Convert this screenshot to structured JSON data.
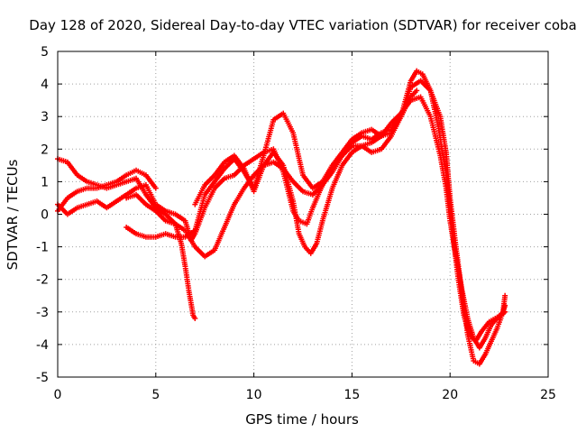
{
  "chart_data": {
    "type": "scatter",
    "title": "Day 128 of 2020, Sidereal Day-to-day VTEC variation (SDTVAR) for receiver coba",
    "xlabel": "GPS time / hours",
    "ylabel": "SDTVAR / TECUs",
    "xlim": [
      0,
      25
    ],
    "ylim": [
      -5,
      5
    ],
    "x_ticks": [
      "0",
      "5",
      "10",
      "15",
      "20",
      "25"
    ],
    "y_ticks": [
      "5",
      "4",
      "3",
      "2",
      "1",
      "0",
      "-1",
      "-2",
      "-3",
      "-4",
      "-5"
    ],
    "grid": true,
    "legend": "none",
    "marker": "plus",
    "color": "#ff0000",
    "series": [
      {
        "x": [
          0.0,
          0.5,
          1.0,
          1.5,
          2.0,
          2.5,
          3.0,
          3.5,
          4.0,
          4.5,
          5.0,
          5.5,
          6.0,
          6.3,
          6.5,
          6.7,
          6.9,
          7.0
        ],
        "y": [
          1.7,
          1.6,
          1.2,
          1.0,
          0.9,
          0.8,
          0.9,
          1.0,
          1.1,
          0.6,
          0.2,
          0.0,
          -0.3,
          -0.9,
          -1.6,
          -2.4,
          -3.1,
          -3.2
        ]
      },
      {
        "x": [
          0.0,
          0.5,
          1.0,
          1.5,
          2.0,
          2.5,
          3.0,
          3.5,
          4.0,
          4.5,
          5.0
        ],
        "y": [
          0.1,
          0.5,
          0.7,
          0.8,
          0.8,
          0.9,
          1.0,
          1.2,
          1.35,
          1.2,
          0.8
        ]
      },
      {
        "x": [
          0.0,
          0.5,
          1.0,
          1.5,
          2.0,
          2.5,
          3.0,
          3.5,
          4.0,
          4.5,
          5.0,
          5.5,
          6.0,
          6.5,
          6.8,
          7.0,
          7.5,
          8.0,
          8.5,
          9.0,
          9.5,
          10.0,
          10.5,
          11.0,
          11.5,
          12.0,
          12.3,
          12.7,
          13.0,
          13.5,
          14.0,
          14.5,
          15.0,
          15.5,
          16.0,
          16.5,
          17.0,
          17.5,
          18.0,
          18.5,
          19.0,
          19.5,
          19.8,
          20.0,
          20.3,
          20.6,
          20.9,
          21.2,
          21.5,
          21.8,
          22.1,
          22.4,
          22.7,
          22.8
        ],
        "y": [
          0.3,
          0.0,
          0.2,
          0.3,
          0.4,
          0.2,
          0.4,
          0.6,
          0.8,
          0.9,
          0.3,
          0.1,
          0.0,
          -0.2,
          -0.8,
          -0.6,
          0.2,
          0.8,
          1.1,
          1.2,
          1.5,
          1.7,
          1.9,
          2.0,
          1.3,
          0.1,
          -0.2,
          -0.3,
          0.2,
          0.9,
          1.5,
          1.8,
          2.1,
          2.1,
          2.2,
          2.4,
          2.8,
          3.1,
          3.5,
          3.6,
          3.0,
          1.8,
          0.8,
          -0.2,
          -1.3,
          -2.3,
          -3.2,
          -3.8,
          -4.1,
          -3.8,
          -3.4,
          -3.2,
          -3.0,
          -2.8
        ]
      },
      {
        "x": [
          3.5,
          4.0,
          4.5,
          5.0,
          5.5,
          6.0,
          6.5,
          7.0,
          7.5,
          8.0,
          8.5,
          9.0,
          9.5,
          10.0,
          10.5,
          11.0,
          11.5,
          12.0,
          12.3,
          12.6,
          12.9,
          13.2,
          13.5,
          14.0,
          14.5,
          15.0,
          15.5,
          16.0,
          16.5,
          17.0,
          17.5,
          18.0,
          18.5,
          19.0,
          19.5,
          19.8,
          20.0,
          20.3,
          20.6,
          20.9,
          21.2,
          21.5,
          21.8,
          22.1,
          22.4,
          22.7,
          22.8
        ],
        "y": [
          0.5,
          0.6,
          0.3,
          0.1,
          -0.2,
          -0.3,
          -0.5,
          -1.0,
          -1.3,
          -1.1,
          -0.4,
          0.3,
          0.8,
          1.2,
          1.5,
          1.9,
          1.5,
          0.4,
          -0.6,
          -1.0,
          -1.2,
          -0.9,
          -0.2,
          0.8,
          1.5,
          1.9,
          2.1,
          1.9,
          2.0,
          2.4,
          3.0,
          3.9,
          4.1,
          3.8,
          3.0,
          1.9,
          0.5,
          -1.0,
          -2.4,
          -3.7,
          -4.5,
          -4.6,
          -4.3,
          -3.9,
          -3.5,
          -3.0,
          -2.5
        ]
      },
      {
        "x": [
          3.5,
          4.0,
          4.5,
          5.0,
          5.5,
          6.0,
          6.5,
          7.0,
          7.5,
          8.0,
          8.5,
          9.0,
          9.5,
          10.0,
          10.5,
          11.0,
          11.5,
          12.0,
          12.5,
          13.0,
          13.5,
          14.0,
          14.5,
          15.0,
          15.5,
          16.0,
          16.5,
          17.0,
          17.5,
          18.0,
          18.3,
          18.6,
          19.0,
          19.4,
          19.8,
          20.1,
          20.4,
          20.7,
          21.0,
          21.3,
          21.6,
          22.0,
          22.3,
          22.6,
          22.8
        ],
        "y": [
          -0.4,
          -0.6,
          -0.7,
          -0.7,
          -0.6,
          -0.7,
          -0.7,
          -0.5,
          0.6,
          1.0,
          1.4,
          1.7,
          1.3,
          0.8,
          1.8,
          2.9,
          3.1,
          2.5,
          1.2,
          0.8,
          1.0,
          1.5,
          1.9,
          2.3,
          2.5,
          2.6,
          2.4,
          2.5,
          3.0,
          4.1,
          4.4,
          4.3,
          3.8,
          2.7,
          1.2,
          -0.4,
          -1.9,
          -3.1,
          -3.7,
          -3.9,
          -3.6,
          -3.3,
          -3.2,
          -3.1,
          -3.0
        ]
      },
      {
        "x": [
          7.0,
          7.5,
          8.0,
          8.5,
          9.0,
          9.5,
          10.0,
          10.5,
          11.0,
          11.5,
          12.0,
          12.5,
          13.0,
          13.5,
          14.0,
          14.5,
          15.0,
          15.5,
          16.0,
          16.5,
          17.0,
          17.5,
          18.0,
          18.3
        ],
        "y": [
          0.3,
          0.9,
          1.2,
          1.6,
          1.8,
          1.4,
          0.7,
          1.5,
          1.6,
          1.4,
          1.0,
          0.7,
          0.6,
          0.9,
          1.3,
          1.8,
          2.2,
          2.4,
          2.3,
          2.5,
          2.6,
          3.0,
          3.6,
          3.8
        ]
      }
    ]
  }
}
